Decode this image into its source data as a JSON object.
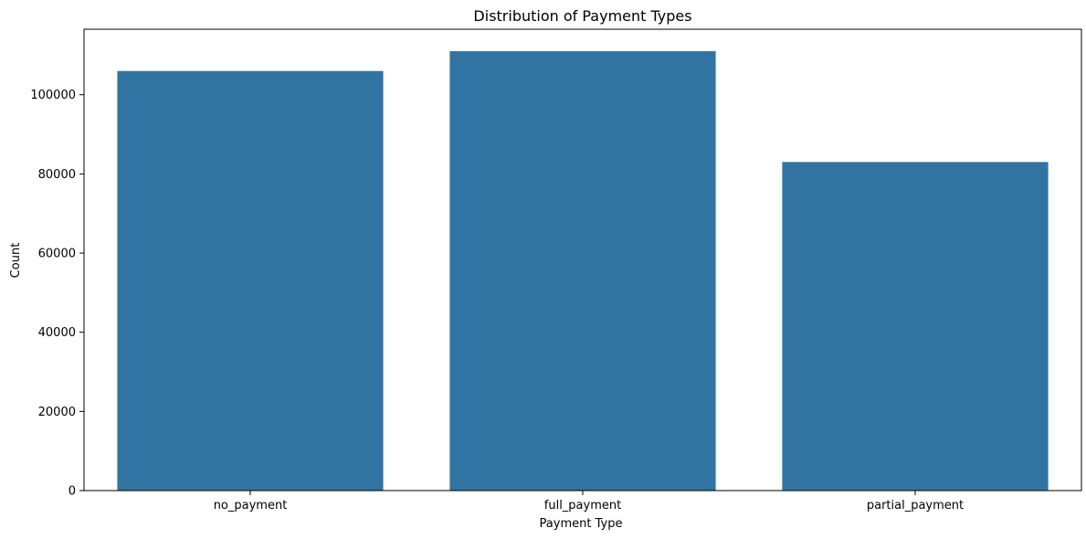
{
  "chart_data": {
    "type": "bar",
    "title": "Distribution of Payment Types",
    "xlabel": "Payment Type",
    "ylabel": "Count",
    "categories": [
      "no_payment",
      "full_payment",
      "partial_payment"
    ],
    "values": [
      106000,
      111000,
      83000
    ],
    "ylim": [
      0,
      116550
    ],
    "yticks": [
      0,
      20000,
      40000,
      60000,
      80000,
      100000
    ],
    "grid": false,
    "legend": "none",
    "bar_color": "#3274a1",
    "axis_color": "#000000"
  }
}
